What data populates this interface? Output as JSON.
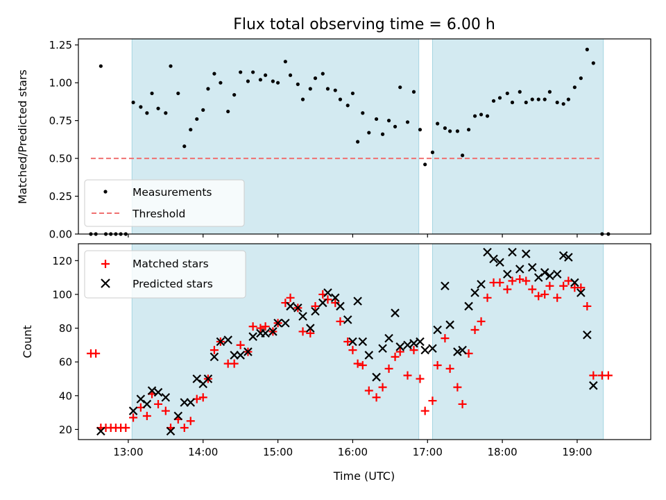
{
  "title": "Flux total observing time = 6.00 h",
  "xlabel": "Time (UTC)",
  "x_ticks": [
    "13:00",
    "14:00",
    "15:00",
    "16:00",
    "17:00",
    "18:00",
    "19:00"
  ],
  "colors": {
    "shade": "#d3eaf1",
    "shade_edge": "#a6d5e2",
    "measurement": "#000000",
    "threshold": "#f07070",
    "matched": "#ff0000",
    "predicted": "#000000"
  },
  "chart_data": [
    {
      "type": "scatter",
      "ylabel": "Matched/Predicted stars",
      "xlim": [
        "12:20",
        "19:59"
      ],
      "ylim": [
        0,
        1.29
      ],
      "y_ticks": [
        "0.00",
        "0.25",
        "0.50",
        "0.75",
        "1.00",
        "1.25"
      ],
      "shaded_intervals": [
        [
          "13:03",
          "16:53"
        ],
        [
          "17:04",
          "19:21"
        ]
      ],
      "threshold": {
        "name": "Threshold",
        "value": 0.5,
        "x_range": [
          "12:30",
          "19:20"
        ]
      },
      "legend": {
        "position": "lower-left",
        "entries": [
          "Measurements",
          "Threshold"
        ]
      },
      "series": [
        {
          "name": "Measurements",
          "points": [
            [
              "12:30",
              0.0
            ],
            [
              "12:34",
              0.0
            ],
            [
              "12:38",
              1.11
            ],
            [
              "12:42",
              0.0
            ],
            [
              "12:46",
              0.0
            ],
            [
              "12:50",
              0.0
            ],
            [
              "12:54",
              0.0
            ],
            [
              "12:58",
              0.0
            ],
            [
              "13:04",
              0.87
            ],
            [
              "13:10",
              0.84
            ],
            [
              "13:15",
              0.8
            ],
            [
              "13:19",
              0.93
            ],
            [
              "13:24",
              0.83
            ],
            [
              "13:30",
              0.8
            ],
            [
              "13:34",
              1.11
            ],
            [
              "13:40",
              0.93
            ],
            [
              "13:45",
              0.58
            ],
            [
              "13:50",
              0.69
            ],
            [
              "13:55",
              0.76
            ],
            [
              "14:00",
              0.82
            ],
            [
              "14:04",
              0.96
            ],
            [
              "14:09",
              1.06
            ],
            [
              "14:14",
              1.0
            ],
            [
              "14:20",
              0.81
            ],
            [
              "14:25",
              0.92
            ],
            [
              "14:30",
              1.07
            ],
            [
              "14:36",
              1.01
            ],
            [
              "14:40",
              1.07
            ],
            [
              "14:46",
              1.02
            ],
            [
              "14:50",
              1.05
            ],
            [
              "14:56",
              1.01
            ],
            [
              "15:00",
              1.0
            ],
            [
              "15:06",
              1.14
            ],
            [
              "15:10",
              1.05
            ],
            [
              "15:16",
              0.99
            ],
            [
              "15:20",
              0.89
            ],
            [
              "15:26",
              0.96
            ],
            [
              "15:30",
              1.03
            ],
            [
              "15:36",
              1.06
            ],
            [
              "15:40",
              0.96
            ],
            [
              "15:46",
              0.95
            ],
            [
              "15:50",
              0.89
            ],
            [
              "15:56",
              0.85
            ],
            [
              "16:00",
              0.93
            ],
            [
              "16:04",
              0.61
            ],
            [
              "16:08",
              0.8
            ],
            [
              "16:13",
              0.67
            ],
            [
              "16:19",
              0.76
            ],
            [
              "16:24",
              0.66
            ],
            [
              "16:29",
              0.75
            ],
            [
              "16:34",
              0.71
            ],
            [
              "16:38",
              0.97
            ],
            [
              "16:44",
              0.74
            ],
            [
              "16:49",
              0.94
            ],
            [
              "16:54",
              0.69
            ],
            [
              "16:58",
              0.46
            ],
            [
              "17:04",
              0.54
            ],
            [
              "17:08",
              0.73
            ],
            [
              "17:14",
              0.7
            ],
            [
              "17:18",
              0.68
            ],
            [
              "17:24",
              0.68
            ],
            [
              "17:28",
              0.52
            ],
            [
              "17:33",
              0.69
            ],
            [
              "17:38",
              0.78
            ],
            [
              "17:43",
              0.79
            ],
            [
              "17:48",
              0.78
            ],
            [
              "17:53",
              0.88
            ],
            [
              "17:58",
              0.9
            ],
            [
              "18:04",
              0.93
            ],
            [
              "18:08",
              0.87
            ],
            [
              "18:14",
              0.94
            ],
            [
              "18:19",
              0.87
            ],
            [
              "18:24",
              0.89
            ],
            [
              "18:29",
              0.89
            ],
            [
              "18:34",
              0.89
            ],
            [
              "18:38",
              0.94
            ],
            [
              "18:44",
              0.87
            ],
            [
              "18:49",
              0.86
            ],
            [
              "18:53",
              0.89
            ],
            [
              "18:58",
              0.97
            ],
            [
              "19:03",
              1.03
            ],
            [
              "19:08",
              1.22
            ],
            [
              "19:13",
              1.13
            ],
            [
              "19:20",
              0.0
            ],
            [
              "19:25",
              0.0
            ]
          ]
        }
      ]
    },
    {
      "type": "scatter",
      "ylabel": "Count",
      "xlabel": "Time (UTC)",
      "xlim": [
        "12:20",
        "19:59"
      ],
      "ylim": [
        14,
        130
      ],
      "y_ticks": [
        "20",
        "40",
        "60",
        "80",
        "100",
        "120"
      ],
      "shaded_intervals": [
        [
          "13:03",
          "16:53"
        ],
        [
          "17:04",
          "19:21"
        ]
      ],
      "legend": {
        "position": "top-left",
        "entries": [
          "Matched stars",
          "Predicted stars"
        ]
      },
      "series": [
        {
          "name": "Matched stars",
          "marker": "+",
          "points": [
            [
              "12:30",
              65
            ],
            [
              "12:34",
              65
            ],
            [
              "12:38",
              21
            ],
            [
              "12:42",
              21
            ],
            [
              "12:46",
              21
            ],
            [
              "12:50",
              21
            ],
            [
              "12:54",
              21
            ],
            [
              "12:58",
              21
            ],
            [
              "13:04",
              27
            ],
            [
              "13:10",
              33
            ],
            [
              "13:15",
              28
            ],
            [
              "13:19",
              41
            ],
            [
              "13:24",
              35
            ],
            [
              "13:30",
              31
            ],
            [
              "13:34",
              21
            ],
            [
              "13:40",
              26
            ],
            [
              "13:45",
              21
            ],
            [
              "13:50",
              25
            ],
            [
              "13:55",
              38
            ],
            [
              "14:00",
              39
            ],
            [
              "14:04",
              50
            ],
            [
              "14:09",
              67
            ],
            [
              "14:14",
              72
            ],
            [
              "14:20",
              59
            ],
            [
              "14:25",
              59
            ],
            [
              "14:30",
              70
            ],
            [
              "14:36",
              66
            ],
            [
              "14:40",
              81
            ],
            [
              "14:46",
              80
            ],
            [
              "14:50",
              81
            ],
            [
              "14:56",
              78
            ],
            [
              "15:00",
              83
            ],
            [
              "15:06",
              95
            ],
            [
              "15:10",
              98
            ],
            [
              "15:16",
              92
            ],
            [
              "15:20",
              78
            ],
            [
              "15:26",
              77
            ],
            [
              "15:30",
              93
            ],
            [
              "15:36",
              100
            ],
            [
              "15:40",
              97
            ],
            [
              "15:46",
              95
            ],
            [
              "15:50",
              84
            ],
            [
              "15:56",
              72
            ],
            [
              "16:00",
              67
            ],
            [
              "16:04",
              59
            ],
            [
              "16:08",
              58
            ],
            [
              "16:13",
              43
            ],
            [
              "16:19",
              39
            ],
            [
              "16:24",
              45
            ],
            [
              "16:29",
              56
            ],
            [
              "16:34",
              63
            ],
            [
              "16:38",
              66
            ],
            [
              "16:44",
              52
            ],
            [
              "16:49",
              67
            ],
            [
              "16:54",
              50
            ],
            [
              "16:58",
              31
            ],
            [
              "17:04",
              37
            ],
            [
              "17:08",
              58
            ],
            [
              "17:14",
              74
            ],
            [
              "17:18",
              56
            ],
            [
              "17:24",
              45
            ],
            [
              "17:28",
              35
            ],
            [
              "17:33",
              65
            ],
            [
              "17:38",
              79
            ],
            [
              "17:43",
              84
            ],
            [
              "17:48",
              98
            ],
            [
              "17:53",
              107
            ],
            [
              "17:58",
              107
            ],
            [
              "18:04",
              103
            ],
            [
              "18:08",
              108
            ],
            [
              "18:14",
              109
            ],
            [
              "18:19",
              108
            ],
            [
              "18:24",
              103
            ],
            [
              "18:29",
              99
            ],
            [
              "18:34",
              100
            ],
            [
              "18:38",
              105
            ],
            [
              "18:44",
              98
            ],
            [
              "18:49",
              105
            ],
            [
              "18:53",
              108
            ],
            [
              "18:58",
              104
            ],
            [
              "19:03",
              104
            ],
            [
              "19:08",
              93
            ],
            [
              "19:13",
              52
            ],
            [
              "19:20",
              52
            ],
            [
              "19:25",
              52
            ]
          ]
        },
        {
          "name": "Predicted stars",
          "marker": "x",
          "points": [
            [
              "12:38",
              19
            ],
            [
              "13:04",
              31
            ],
            [
              "13:10",
              38
            ],
            [
              "13:15",
              35
            ],
            [
              "13:19",
              43
            ],
            [
              "13:24",
              42
            ],
            [
              "13:30",
              39
            ],
            [
              "13:34",
              19
            ],
            [
              "13:40",
              28
            ],
            [
              "13:45",
              36
            ],
            [
              "13:50",
              36
            ],
            [
              "13:55",
              50
            ],
            [
              "14:00",
              47
            ],
            [
              "14:04",
              50
            ],
            [
              "14:09",
              63
            ],
            [
              "14:14",
              72
            ],
            [
              "14:20",
              73
            ],
            [
              "14:25",
              64
            ],
            [
              "14:30",
              64
            ],
            [
              "14:36",
              66
            ],
            [
              "14:40",
              75
            ],
            [
              "14:46",
              77
            ],
            [
              "14:50",
              77
            ],
            [
              "14:56",
              78
            ],
            [
              "15:00",
              83
            ],
            [
              "15:06",
              83
            ],
            [
              "15:10",
              93
            ],
            [
              "15:16",
              92
            ],
            [
              "15:20",
              87
            ],
            [
              "15:26",
              80
            ],
            [
              "15:30",
              90
            ],
            [
              "15:36",
              95
            ],
            [
              "15:40",
              101
            ],
            [
              "15:46",
              98
            ],
            [
              "15:50",
              93
            ],
            [
              "15:56",
              85
            ],
            [
              "16:00",
              72
            ],
            [
              "16:04",
              96
            ],
            [
              "16:08",
              72
            ],
            [
              "16:13",
              64
            ],
            [
              "16:19",
              51
            ],
            [
              "16:24",
              68
            ],
            [
              "16:29",
              74
            ],
            [
              "16:34",
              89
            ],
            [
              "16:38",
              69
            ],
            [
              "16:44",
              70
            ],
            [
              "16:49",
              71
            ],
            [
              "16:54",
              72
            ],
            [
              "16:58",
              67
            ],
            [
              "17:04",
              68
            ],
            [
              "17:08",
              79
            ],
            [
              "17:14",
              105
            ],
            [
              "17:18",
              82
            ],
            [
              "17:24",
              66
            ],
            [
              "17:28",
              67
            ],
            [
              "17:33",
              93
            ],
            [
              "17:38",
              101
            ],
            [
              "17:43",
              106
            ],
            [
              "17:48",
              125
            ],
            [
              "17:53",
              121
            ],
            [
              "17:58",
              119
            ],
            [
              "18:04",
              112
            ],
            [
              "18:08",
              125
            ],
            [
              "18:14",
              115
            ],
            [
              "18:19",
              124
            ],
            [
              "18:24",
              116
            ],
            [
              "18:29",
              110
            ],
            [
              "18:34",
              113
            ],
            [
              "18:38",
              111
            ],
            [
              "18:44",
              112
            ],
            [
              "18:49",
              123
            ],
            [
              "18:53",
              122
            ],
            [
              "18:58",
              107
            ],
            [
              "19:03",
              101
            ],
            [
              "19:08",
              76
            ],
            [
              "19:13",
              46
            ]
          ]
        }
      ]
    }
  ]
}
